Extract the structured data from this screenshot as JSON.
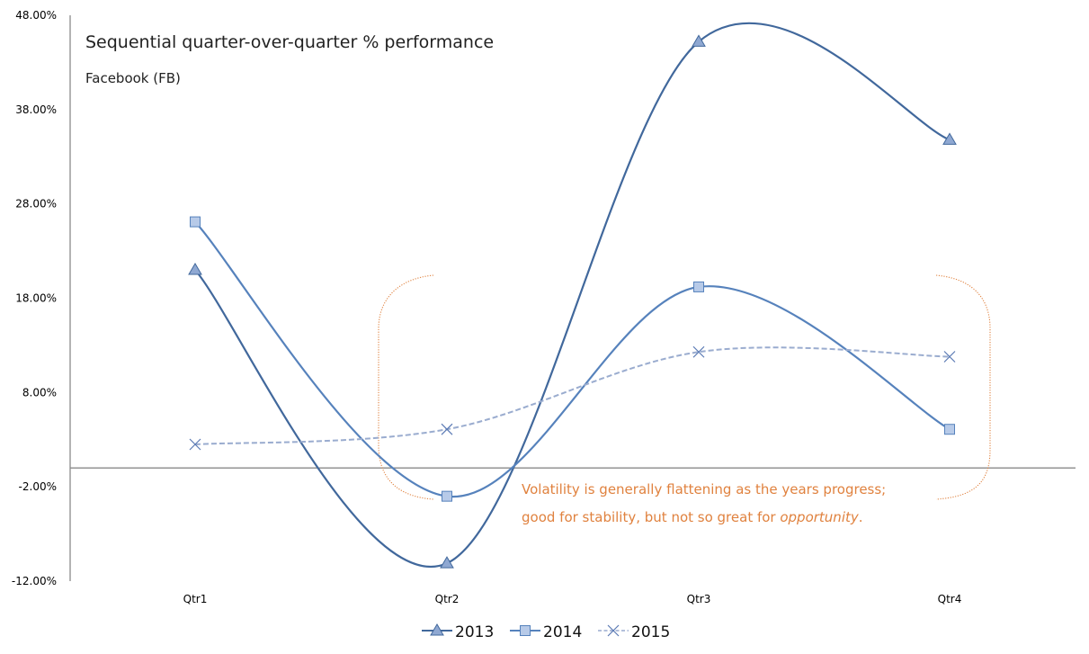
{
  "chart_data": {
    "type": "line",
    "title": "Sequential quarter-over-quarter % performance",
    "subtitle": "Facebook (FB)",
    "xlabel": "",
    "ylabel": "",
    "categories": [
      "Qtr1",
      "Qtr2",
      "Qtr3",
      "Qtr4"
    ],
    "ylim": [
      -12,
      48
    ],
    "yticks": [
      48,
      38,
      28,
      18,
      8,
      -2,
      -12
    ],
    "ytick_labels": [
      "48.00%",
      "38.00%",
      "28.00%",
      "18.00%",
      "8.00%",
      "-2.00%",
      "-12.00%"
    ],
    "grid": false,
    "smoothed": true,
    "legend_position": "bottom",
    "series": [
      {
        "name": "2013",
        "values": [
          21.0,
          -10.1,
          45.2,
          34.8
        ],
        "marker": "triangle",
        "color": "#41689C",
        "marker_fill": "#8FA8D2",
        "dash": "solid"
      },
      {
        "name": "2014",
        "values": [
          26.1,
          -3.0,
          19.2,
          4.1
        ],
        "marker": "square",
        "color": "#5682BC",
        "marker_fill": "#B7CAE8",
        "dash": "solid"
      },
      {
        "name": "2015",
        "values": [
          2.5,
          4.1,
          12.3,
          11.8
        ],
        "marker": "x",
        "color": "#9AACCF",
        "marker_fill": "#5A7AB4",
        "dash": "dashed"
      }
    ],
    "annotation": {
      "line1": "Volatility is generally flattening as the years progress;",
      "line2_prefix": "good for stability, but not so great for ",
      "line2_italic": "opportunity",
      "line2_suffix": ".",
      "color": "#E0823F",
      "spans_categories": [
        "Qtr2",
        "Qtr4"
      ]
    }
  }
}
